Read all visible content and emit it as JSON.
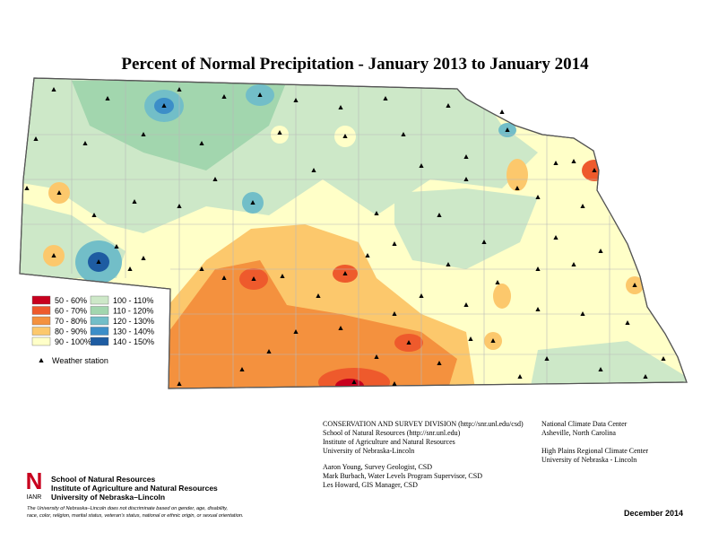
{
  "title": "Percent of Normal Precipitation - January 2013 to January 2014",
  "legend": {
    "items": [
      {
        "label": "50 - 60%",
        "color": "#c8001e"
      },
      {
        "label": "60 - 70%",
        "color": "#ee5a2c"
      },
      {
        "label": "70 - 80%",
        "color": "#f4913e"
      },
      {
        "label": "80 - 90%",
        "color": "#fcc86c"
      },
      {
        "label": "90 - 100%",
        "color": "#ffffc8"
      },
      {
        "label": "100 - 110%",
        "color": "#cde8c8"
      },
      {
        "label": "110 - 120%",
        "color": "#a2d6ae"
      },
      {
        "label": "120 - 130%",
        "color": "#72bec8"
      },
      {
        "label": "130 - 140%",
        "color": "#3c8ec8"
      },
      {
        "label": "140 - 150%",
        "color": "#1e5ca2"
      }
    ],
    "station": "Weather station"
  },
  "credits": {
    "csd": [
      "CONSERVATION AND SURVEY DIVISION (http://snr.unl.edu/csd)",
      "School of Natural Resources (http://snr.unl.edu)",
      "Institute of Agriculture and Natural Resources",
      "University of Nebraska-Lincoln"
    ],
    "staff": [
      "Aaron Young, Survey Geologist, CSD",
      "Mark Burbach, Water Levels Program Supervisor, CSD",
      "Les Howard, GIS Manager, CSD"
    ],
    "ncdc": [
      "National Climate Data Center",
      "Asheville, North Carolina"
    ],
    "hprcc": [
      "High Plains Regional Climate Center",
      "University of Nebraska - Lincoln"
    ],
    "logo": {
      "mark": "N",
      "sub": "IANR",
      "lines": [
        "School of Natural Resources",
        "Institute of Agriculture and Natural Resources",
        "University of Nebraska–Lincoln"
      ]
    },
    "disclaimer": [
      "The University of Nebraska–Lincoln does not discriminate based on gender, age, disability,",
      "race, color, religion, marital status, veteran’s status, national or ethnic origin, or sexual orientation."
    ],
    "date": "December 2014"
  }
}
